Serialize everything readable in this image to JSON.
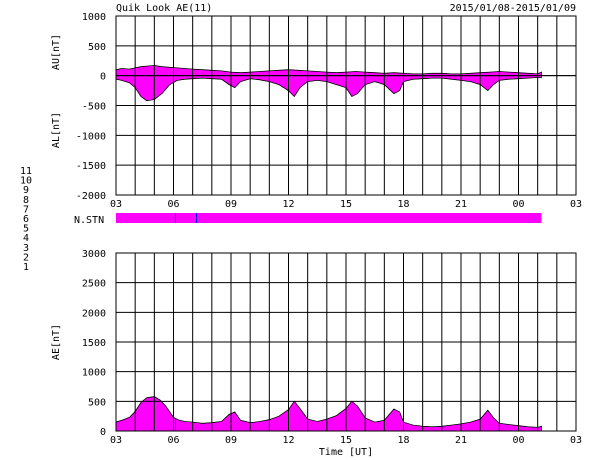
{
  "header": {
    "title": "Quik Look AE(11)",
    "date_range": "2015/01/08-2015/01/09"
  },
  "chart_data": [
    {
      "type": "area",
      "panel": "AU/AL",
      "ylabel_upper": "AU[nT]",
      "ylabel_lower": "AL[nT]",
      "ylim": [
        -2000,
        1000
      ],
      "yticks": [
        "1000",
        "500",
        "0",
        "-500",
        "-1000",
        "-1500",
        "-2000"
      ],
      "ytick_values": [
        1000,
        500,
        0,
        -500,
        -1000,
        -1500,
        -2000
      ],
      "xlim": [
        3,
        27
      ],
      "xticks": [
        "03",
        "06",
        "09",
        "12",
        "15",
        "18",
        "21",
        "00",
        "03"
      ],
      "xtick_values": [
        3,
        6,
        9,
        12,
        15,
        18,
        21,
        24,
        27
      ],
      "grid": true,
      "fill_color": "#ff00ff",
      "data_end_hour": 25.2,
      "series": [
        {
          "key": "AU",
          "x": [
            3.0,
            3.3,
            3.7,
            4.0,
            4.3,
            4.6,
            5.0,
            5.4,
            5.8,
            6.2,
            6.6,
            7.0,
            7.5,
            8.0,
            8.5,
            9.0,
            9.5,
            10.0,
            10.5,
            11.0,
            11.5,
            12.0,
            12.5,
            13.0,
            13.5,
            14.0,
            14.5,
            15.0,
            15.5,
            16.0,
            16.5,
            17.0,
            17.5,
            18.0,
            18.5,
            19.0,
            19.5,
            20.0,
            20.5,
            21.0,
            21.5,
            22.0,
            22.5,
            23.0,
            23.5,
            24.0,
            24.5,
            25.0,
            25.2
          ],
          "values": [
            100,
            120,
            110,
            130,
            150,
            160,
            170,
            150,
            140,
            130,
            120,
            110,
            100,
            90,
            80,
            60,
            50,
            60,
            70,
            80,
            90,
            100,
            90,
            80,
            70,
            60,
            50,
            60,
            70,
            60,
            50,
            40,
            50,
            40,
            30,
            30,
            40,
            40,
            30,
            30,
            40,
            50,
            60,
            70,
            60,
            50,
            40,
            30,
            60
          ]
        },
        {
          "key": "AL",
          "x": [
            3.0,
            3.3,
            3.7,
            4.0,
            4.3,
            4.6,
            5.0,
            5.4,
            5.8,
            6.2,
            6.6,
            7.0,
            7.5,
            8.0,
            8.5,
            8.9,
            9.2,
            9.5,
            10.0,
            10.5,
            11.0,
            11.5,
            12.0,
            12.3,
            12.6,
            13.0,
            13.5,
            14.0,
            14.5,
            15.0,
            15.3,
            15.6,
            16.0,
            16.5,
            17.0,
            17.5,
            17.8,
            18.0,
            18.5,
            19.0,
            19.5,
            20.0,
            20.5,
            21.0,
            21.5,
            22.0,
            22.4,
            22.7,
            23.0,
            23.5,
            24.0,
            24.5,
            25.0,
            25.2
          ],
          "values": [
            -60,
            -80,
            -120,
            -200,
            -350,
            -420,
            -400,
            -300,
            -150,
            -80,
            -60,
            -50,
            -40,
            -50,
            -60,
            -150,
            -200,
            -100,
            -50,
            -70,
            -100,
            -150,
            -250,
            -350,
            -200,
            -100,
            -80,
            -100,
            -150,
            -200,
            -350,
            -300,
            -150,
            -100,
            -150,
            -300,
            -250,
            -100,
            -60,
            -50,
            -40,
            -40,
            -60,
            -80,
            -100,
            -150,
            -250,
            -150,
            -80,
            -60,
            -50,
            -40,
            -30,
            -30
          ]
        }
      ]
    },
    {
      "type": "strip",
      "panel": "N.STN",
      "label": "N.STN",
      "level": 11,
      "legend": [
        "11",
        "10",
        "9",
        "8",
        "7",
        "6",
        "5",
        "4",
        "3",
        "2",
        "1"
      ],
      "legend_colors": [
        "#00e0e0",
        "#ff00ff",
        "#0000ff",
        "#ffff00",
        "#ffa000",
        "#ff0000",
        "#c8c8c8",
        "#808080",
        "#00a060",
        "#ff00ff",
        "#0000ff"
      ],
      "marker_hours": [
        6.1,
        7.2
      ],
      "marker_color": "#0000ff",
      "fill_color": "#ff00ff",
      "data_end_hour": 25.2
    },
    {
      "type": "area",
      "panel": "AE",
      "ylabel": "AE[nT]",
      "xlabel": "Time [UT]",
      "ylim": [
        0,
        3000
      ],
      "yticks": [
        "3000",
        "2500",
        "2000",
        "1500",
        "1000",
        "500",
        "0"
      ],
      "ytick_values": [
        3000,
        2500,
        2000,
        1500,
        1000,
        500,
        0
      ],
      "xlim": [
        3,
        27
      ],
      "xticks": [
        "03",
        "06",
        "09",
        "12",
        "15",
        "18",
        "21",
        "00",
        "03"
      ],
      "xtick_values": [
        3,
        6,
        9,
        12,
        15,
        18,
        21,
        24,
        27
      ],
      "grid": true,
      "fill_color": "#ff00ff",
      "marker_hours": [
        6.1
      ],
      "marker_color": "#0000ff",
      "data_end_hour": 25.2,
      "series": [
        {
          "key": "AE",
          "x": [
            3.0,
            3.3,
            3.7,
            4.0,
            4.3,
            4.6,
            5.0,
            5.3,
            5.6,
            6.0,
            6.3,
            6.6,
            7.0,
            7.5,
            8.0,
            8.5,
            8.9,
            9.2,
            9.5,
            10.0,
            10.5,
            11.0,
            11.5,
            12.0,
            12.3,
            12.6,
            13.0,
            13.5,
            14.0,
            14.5,
            15.0,
            15.3,
            15.6,
            16.0,
            16.5,
            17.0,
            17.5,
            17.8,
            18.0,
            18.5,
            19.0,
            19.5,
            20.0,
            20.5,
            21.0,
            21.5,
            22.0,
            22.4,
            22.7,
            23.0,
            23.5,
            24.0,
            24.5,
            25.0,
            25.2
          ],
          "values": [
            150,
            180,
            230,
            330,
            480,
            560,
            580,
            520,
            420,
            230,
            180,
            160,
            150,
            130,
            140,
            160,
            280,
            320,
            180,
            140,
            160,
            190,
            250,
            360,
            500,
            380,
            200,
            160,
            200,
            260,
            380,
            500,
            420,
            220,
            150,
            180,
            370,
            320,
            150,
            100,
            80,
            70,
            80,
            100,
            120,
            150,
            200,
            350,
            220,
            130,
            110,
            90,
            70,
            60,
            80
          ]
        }
      ]
    }
  ]
}
